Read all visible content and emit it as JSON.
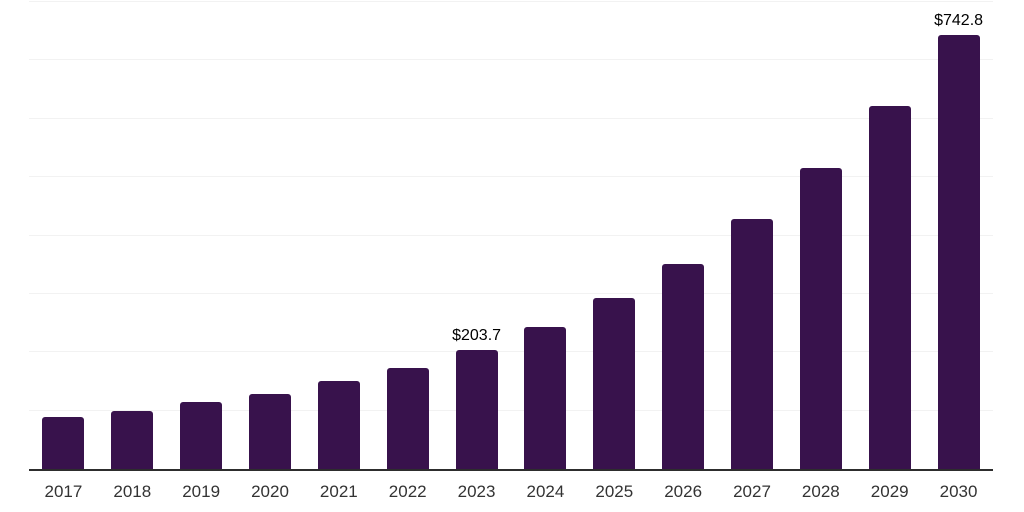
{
  "chart_data": {
    "type": "bar",
    "categories": [
      "2017",
      "2018",
      "2019",
      "2020",
      "2021",
      "2022",
      "2023",
      "2024",
      "2025",
      "2026",
      "2027",
      "2028",
      "2029",
      "2030"
    ],
    "values": [
      89.0,
      100.0,
      114.2,
      128.8,
      150.0,
      173.7,
      203.7,
      243.3,
      292.5,
      351.8,
      428.2,
      516.4,
      621.5,
      742.8
    ],
    "data_labels": {
      "2023": "$203.7",
      "2030": "$742.8"
    },
    "ylim": [
      0,
      800
    ],
    "gridline_step": 100,
    "grid": true,
    "legend": "none",
    "yaxis_tick_labels_visible": false,
    "colors": {
      "bar": "#38124C",
      "axis": "#2d2d2d",
      "gridline": "#f2f2f2",
      "tick_label": "#333333",
      "data_label": "#000000",
      "background": "#ffffff"
    }
  }
}
